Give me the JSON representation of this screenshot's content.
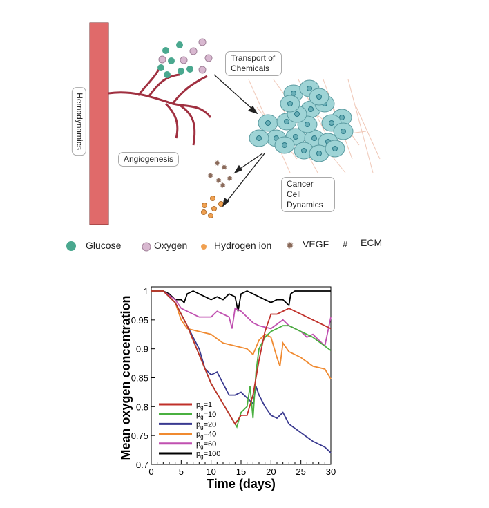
{
  "diagram": {
    "labels": {
      "hemodynamics": "Hemodynamics",
      "angiogenesis": "Angiogenesis",
      "transport": "Transport of Chemicals",
      "cancer": "Cancer Cell Dynamics"
    },
    "legend": [
      "Glucose",
      "Oxygen",
      "Hydrogen ion",
      "VEGF",
      "ECM"
    ],
    "colors": {
      "vessel": "#e06a6a",
      "glucose": "#4aa88f",
      "oxygen": "#d8b8d0",
      "hydrogen": "#f0a050",
      "cells": "#9fd4d6",
      "ecm": "#f0c8b8"
    }
  },
  "chart_data": {
    "type": "line",
    "xlabel": "Time (days)",
    "ylabel": "Mean oxygen concentration",
    "xlim": [
      0,
      30
    ],
    "ylim": [
      0.7,
      1
    ],
    "xticks": [
      "0",
      "5",
      "10",
      "15",
      "20",
      "25",
      "30"
    ],
    "yticks": [
      "0.7",
      "0.75",
      "0.8",
      "0.85",
      "0.9",
      "0.95",
      "1"
    ],
    "legend_position": "bottom-left",
    "series": [
      {
        "name": "p_g=1",
        "label_main": "p",
        "label_sub": "g",
        "label_rest": "=1",
        "color": "#c0302a",
        "x": [
          0,
          2,
          4,
          6,
          8,
          10,
          12,
          14,
          15,
          16,
          17,
          18,
          19,
          20,
          21,
          22,
          23,
          25,
          27,
          30
        ],
        "y": [
          1,
          1,
          0.98,
          0.94,
          0.89,
          0.84,
          0.805,
          0.77,
          0.785,
          0.785,
          0.82,
          0.88,
          0.93,
          0.96,
          0.96,
          0.965,
          0.97,
          0.96,
          0.95,
          0.935
        ]
      },
      {
        "name": "p_g=10",
        "label_main": "p",
        "label_sub": "g",
        "label_rest": "=10",
        "color": "#4ab040",
        "x": [
          0,
          2,
          4,
          6,
          8,
          10,
          12,
          14.3,
          15,
          16,
          16.5,
          17,
          17.5,
          18,
          19,
          20,
          21,
          22,
          23,
          25,
          27,
          30
        ],
        "y": [
          1,
          1,
          0.98,
          0.94,
          0.89,
          0.84,
          0.805,
          0.765,
          0.79,
          0.8,
          0.835,
          0.78,
          0.86,
          0.9,
          0.92,
          0.93,
          0.935,
          0.94,
          0.94,
          0.93,
          0.92,
          0.897
        ]
      },
      {
        "name": "p_g=20",
        "label_main": "p",
        "label_sub": "g",
        "label_rest": "=20",
        "color": "#3a3a90",
        "x": [
          0,
          2,
          4,
          6,
          8,
          9,
          10,
          11,
          12,
          13,
          14,
          15,
          16,
          17,
          17.5,
          18,
          19,
          20,
          21,
          22,
          23,
          25,
          27,
          29,
          30
        ],
        "y": [
          1,
          1,
          0.98,
          0.94,
          0.9,
          0.865,
          0.855,
          0.86,
          0.84,
          0.82,
          0.82,
          0.825,
          0.815,
          0.805,
          0.835,
          0.82,
          0.8,
          0.785,
          0.78,
          0.79,
          0.77,
          0.755,
          0.74,
          0.73,
          0.72
        ]
      },
      {
        "name": "p_g=40",
        "label_main": "p",
        "label_sub": "g",
        "label_rest": "=40",
        "color": "#f08a30",
        "x": [
          0,
          2,
          4,
          5,
          6,
          8,
          10,
          12,
          14,
          16,
          17,
          18,
          19,
          20,
          21,
          21.5,
          22,
          23,
          25,
          27,
          29,
          30
        ],
        "y": [
          1,
          1,
          0.98,
          0.95,
          0.935,
          0.93,
          0.925,
          0.91,
          0.905,
          0.9,
          0.89,
          0.915,
          0.925,
          0.92,
          0.885,
          0.87,
          0.91,
          0.895,
          0.885,
          0.87,
          0.865,
          0.848
        ]
      },
      {
        "name": "p_g=60",
        "label_main": "p",
        "label_sub": "g",
        "label_rest": "=60",
        "color": "#c050b0",
        "x": [
          0,
          2,
          4,
          5,
          6,
          8,
          10,
          11,
          12,
          13,
          13.5,
          14,
          15,
          16,
          17,
          18,
          20,
          22,
          23,
          25,
          26,
          27,
          29,
          30
        ],
        "y": [
          1,
          1,
          0.985,
          0.97,
          0.965,
          0.955,
          0.955,
          0.965,
          0.96,
          0.955,
          0.935,
          0.97,
          0.965,
          0.955,
          0.945,
          0.94,
          0.935,
          0.95,
          0.94,
          0.93,
          0.92,
          0.925,
          0.905,
          0.955
        ]
      },
      {
        "name": "p_g=100",
        "label_main": "p",
        "label_sub": "g",
        "label_rest": "=100",
        "color": "#000000",
        "x": [
          0,
          2,
          3,
          4,
          5,
          5.5,
          6,
          7,
          8,
          9,
          10,
          11,
          12,
          13,
          14,
          14.5,
          15,
          16,
          18,
          19,
          20,
          21,
          22,
          23,
          23.3,
          24,
          30
        ],
        "y": [
          1,
          1,
          0.995,
          0.985,
          0.985,
          0.98,
          0.995,
          1,
          0.995,
          0.99,
          0.985,
          0.99,
          0.985,
          0.995,
          0.99,
          0.965,
          0.995,
          1,
          0.99,
          0.985,
          0.98,
          0.985,
          0.985,
          0.975,
          0.995,
          1,
          1
        ]
      }
    ]
  }
}
